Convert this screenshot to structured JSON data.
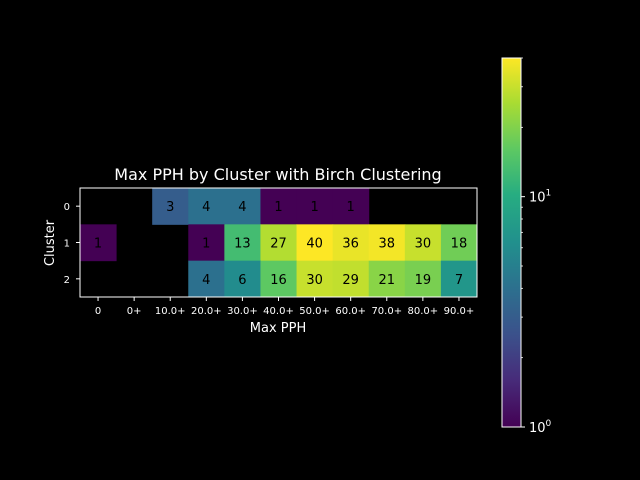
{
  "chart_data": {
    "type": "heatmap",
    "title": "Max PPH by Cluster with Birch Clustering",
    "xlabel": "Max PPH",
    "ylabel": "Cluster",
    "x_categories": [
      "0",
      "0+",
      "10.0+",
      "20.0+",
      "30.0+",
      "40.0+",
      "50.0+",
      "60.0+",
      "70.0+",
      "80.0+",
      "90.0+"
    ],
    "y_categories": [
      "0",
      "1",
      "2"
    ],
    "values": [
      [
        null,
        null,
        3,
        4,
        4,
        1,
        1,
        1,
        null,
        null,
        null
      ],
      [
        1,
        null,
        null,
        1,
        13,
        27,
        40,
        36,
        38,
        30,
        18
      ],
      [
        null,
        null,
        null,
        4,
        6,
        16,
        30,
        29,
        21,
        19,
        7
      ]
    ],
    "colormap": "viridis",
    "color_scale": "log",
    "color_range": [
      1,
      40
    ],
    "colorbar_ticks": [
      {
        "value": 1,
        "label": "10",
        "exp": "0"
      },
      {
        "value": 10,
        "label": "10",
        "exp": "1"
      }
    ],
    "background_color": "#000000",
    "text_color": "#ffffff"
  }
}
